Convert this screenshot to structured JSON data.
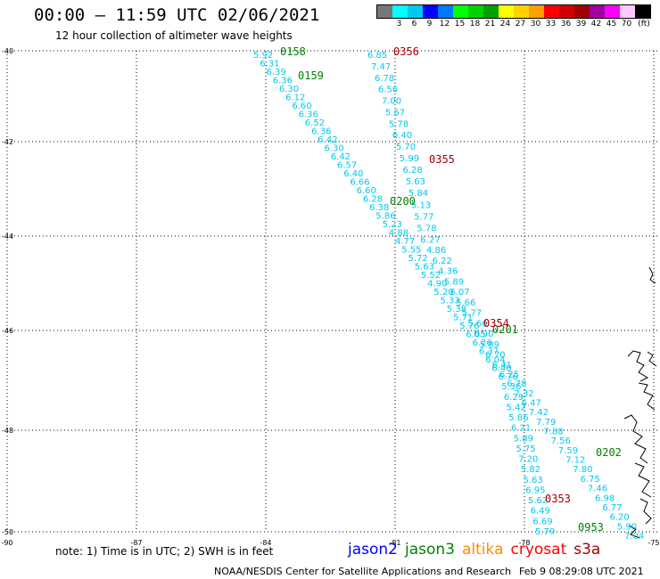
{
  "header": {
    "title": "00:00 – 11:59 UTC 02/06/2021",
    "subtitle": "12 hour collection of altimeter wave heights"
  },
  "legend": {
    "unit": "(ft)",
    "items": [
      {
        "label": "",
        "color": "#777777"
      },
      {
        "label": "3",
        "color": "#00ffff"
      },
      {
        "label": "6",
        "color": "#00c8f0"
      },
      {
        "label": "9",
        "color": "#0000ff"
      },
      {
        "label": "12",
        "color": "#0078ff"
      },
      {
        "label": "15",
        "color": "#00ff00"
      },
      {
        "label": "18",
        "color": "#00d200"
      },
      {
        "label": "21",
        "color": "#00a000"
      },
      {
        "label": "24",
        "color": "#ffff00"
      },
      {
        "label": "27",
        "color": "#ffd200"
      },
      {
        "label": "30",
        "color": "#ffa000"
      },
      {
        "label": "33",
        "color": "#ff0000"
      },
      {
        "label": "36",
        "color": "#d20000"
      },
      {
        "label": "39",
        "color": "#a00000"
      },
      {
        "label": "42",
        "color": "#a000a0"
      },
      {
        "label": "45",
        "color": "#ff00ff"
      },
      {
        "label": "70",
        "color": "#ffc8ff"
      },
      {
        "label": "",
        "color": "#000000"
      }
    ]
  },
  "map": {
    "lat_labels": [
      "-40",
      "-42",
      "-44",
      "-46",
      "-48",
      "-50"
    ],
    "lon_labels": [
      "-90",
      "-87",
      "-84",
      "-81",
      "-78",
      "-75"
    ],
    "grid": "dotted",
    "tracks": [
      {
        "name": "west track",
        "color": "#00c8f0",
        "values": [
          "5.92",
          "6.31",
          "6.39",
          "6.36",
          "6.30",
          "6.12",
          "6.60",
          "6.36",
          "6.52",
          "6.36",
          "6.42",
          "6.30",
          "6.42",
          "6.57",
          "6.40",
          "6.66",
          "6.60",
          "6.28",
          "6.38",
          "5.86",
          "5.23",
          "4.88",
          "4.77",
          "5.55",
          "5.72",
          "5.63",
          "5.52",
          "4.90",
          "5.20",
          "5.33",
          "5.38",
          "5.71",
          "5.76",
          "6.05",
          "6.26",
          "6.37",
          "6.04",
          "6.40",
          "6.76",
          "5.36",
          "6.29",
          "5.42",
          "5.86",
          "6.21",
          "5.89",
          "5.75",
          "7.20",
          "5.82",
          "5.63",
          "6.95",
          "5.62",
          "6.49",
          "6.69",
          "5.79"
        ]
      },
      {
        "name": "east track",
        "color": "#00c8f0",
        "values": [
          "6.85",
          "7.47",
          "6.78",
          "6.56",
          "7.00",
          "5.67",
          "5.78",
          "6.40",
          "5.70",
          "5.99",
          "6.28",
          "5.63",
          "5.84",
          "5.13",
          "5.77",
          "5.78",
          "6.27",
          "4.86",
          "6.22",
          "4.36",
          "5.89",
          "6.07",
          "5.66",
          "5.77",
          "5.66",
          "6.90",
          "5.89",
          "6.70",
          "6.41",
          "6.25",
          "6.78",
          "7.32",
          "6.47",
          "7.42",
          "7.79",
          "7.88",
          "7.56",
          "7.59",
          "7.12",
          "7.80",
          "6.75",
          "7.46",
          "6.98",
          "6.77",
          "6.20",
          "5.90",
          "7.04"
        ]
      }
    ],
    "time_labels": [
      {
        "text": "0158",
        "color": "#008000"
      },
      {
        "text": "0159",
        "color": "#008000"
      },
      {
        "text": "0200",
        "color": "#008000"
      },
      {
        "text": "0201",
        "color": "#008000"
      },
      {
        "text": "0202",
        "color": "#008000"
      },
      {
        "text": "0953",
        "color": "#008000"
      },
      {
        "text": "0356",
        "color": "#a00000"
      },
      {
        "text": "0355",
        "color": "#a00000"
      },
      {
        "text": "0354",
        "color": "#a00000"
      },
      {
        "text": "0353",
        "color": "#a00000"
      }
    ]
  },
  "footnote": "note: 1) Time is in UTC; 2) SWH is in feet",
  "satellites": [
    {
      "name": "jason2",
      "color": "#0000ff"
    },
    {
      "name": "jason3",
      "color": "#008000"
    },
    {
      "name": "altika",
      "color": "#ff8c00"
    },
    {
      "name": "cryosat",
      "color": "#ff0000"
    },
    {
      "name": "s3a",
      "color": "#a00000"
    }
  ],
  "credit": "NOAA/NESDIS Center for Satellite Applications and Research",
  "timestamp": "Feb  9 08:29:08 UTC 2021"
}
